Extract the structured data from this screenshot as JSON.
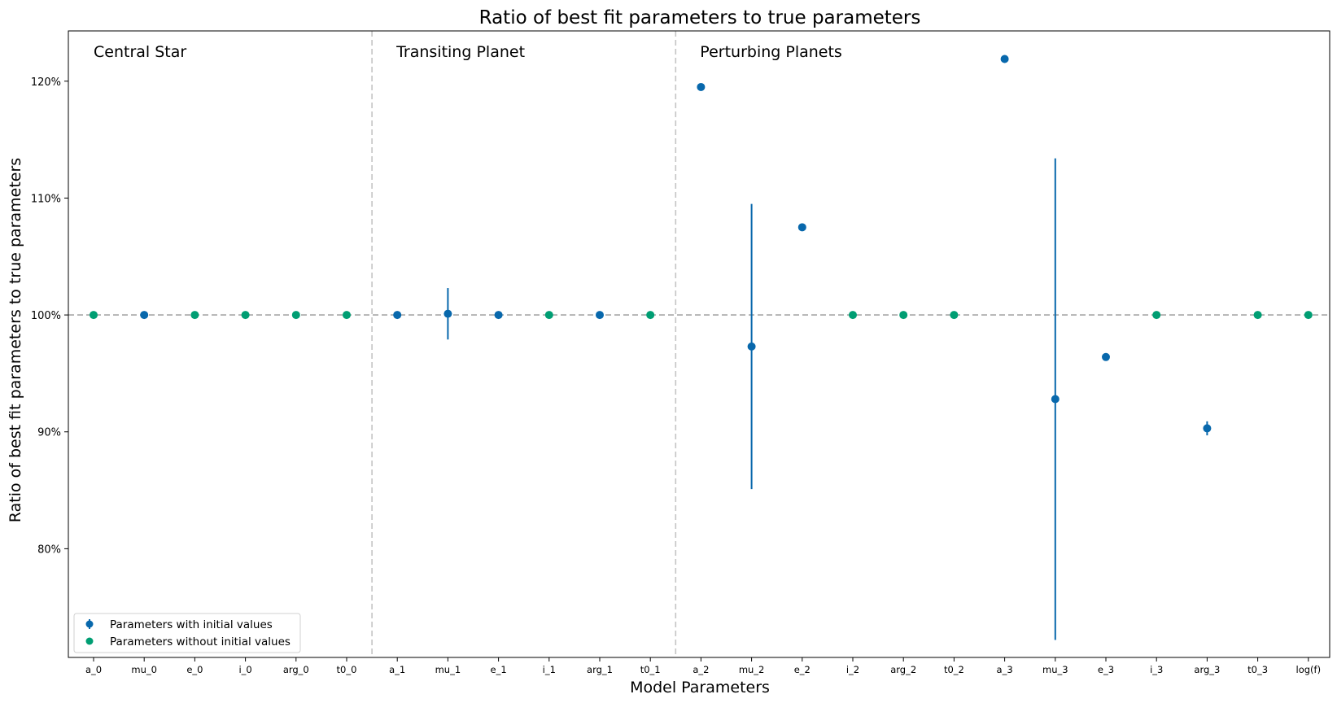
{
  "chart_data": {
    "type": "scatter",
    "title": "Ratio of best fit parameters to true parameters",
    "xlabel": "Model Parameters",
    "ylabel": "Ratio of best fit parameters to true parameters",
    "categories": [
      "a_0",
      "mu_0",
      "e_0",
      "i_0",
      "arg_0",
      "t0_0",
      "a_1",
      "mu_1",
      "e_1",
      "i_1",
      "arg_1",
      "t0_1",
      "a_2",
      "mu_2",
      "e_2",
      "i_2",
      "arg_2",
      "t0_2",
      "a_3",
      "mu_3",
      "e_3",
      "i_3",
      "arg_3",
      "t0_3",
      "log(f)"
    ],
    "yticks": [
      80,
      90,
      100,
      110,
      120
    ],
    "ytick_labels": [
      "80%",
      "90%",
      "100%",
      "110%",
      "120%"
    ],
    "ylim": [
      70.7,
      124.3
    ],
    "reference_line": 100,
    "sections": [
      {
        "label": "Central Star",
        "start_index": 0
      },
      {
        "label": "Transiting Planet",
        "start_index": 6
      },
      {
        "label": "Perturbing Planets",
        "start_index": 12
      }
    ],
    "grid": false,
    "legend_position": "lower-left",
    "series": [
      {
        "name": "Parameters with initial values",
        "color": "#0868ac",
        "marker": "errorbar",
        "points": [
          {
            "category": "mu_0",
            "value": 100.0,
            "err": 0
          },
          {
            "category": "a_1",
            "value": 100.0,
            "err": 0
          },
          {
            "category": "mu_1",
            "value": 100.1,
            "err": 2.2
          },
          {
            "category": "e_1",
            "value": 100.0,
            "err": 0
          },
          {
            "category": "arg_1",
            "value": 100.0,
            "err": 0.3
          },
          {
            "category": "a_2",
            "value": 119.5,
            "err": 0
          },
          {
            "category": "mu_2",
            "value": 97.3,
            "err": 12.2
          },
          {
            "category": "e_2",
            "value": 107.5,
            "err": 0
          },
          {
            "category": "a_3",
            "value": 121.9,
            "err": 0
          },
          {
            "category": "mu_3",
            "value": 92.8,
            "err": 20.6
          },
          {
            "category": "e_3",
            "value": 96.4,
            "err": 0
          },
          {
            "category": "arg_3",
            "value": 90.3,
            "err": 0.6
          }
        ]
      },
      {
        "name": "Parameters without initial values",
        "color": "#009e73",
        "marker": "dot",
        "points": [
          {
            "category": "a_0",
            "value": 100.0
          },
          {
            "category": "e_0",
            "value": 100.0
          },
          {
            "category": "i_0",
            "value": 100.0
          },
          {
            "category": "arg_0",
            "value": 100.0
          },
          {
            "category": "t0_0",
            "value": 100.0
          },
          {
            "category": "i_1",
            "value": 100.0
          },
          {
            "category": "t0_1",
            "value": 100.0
          },
          {
            "category": "i_2",
            "value": 100.0
          },
          {
            "category": "arg_2",
            "value": 100.0
          },
          {
            "category": "t0_2",
            "value": 100.0
          },
          {
            "category": "i_3",
            "value": 100.0
          },
          {
            "category": "t0_3",
            "value": 100.0
          },
          {
            "category": "log(f)",
            "value": 100.0
          }
        ]
      }
    ]
  }
}
